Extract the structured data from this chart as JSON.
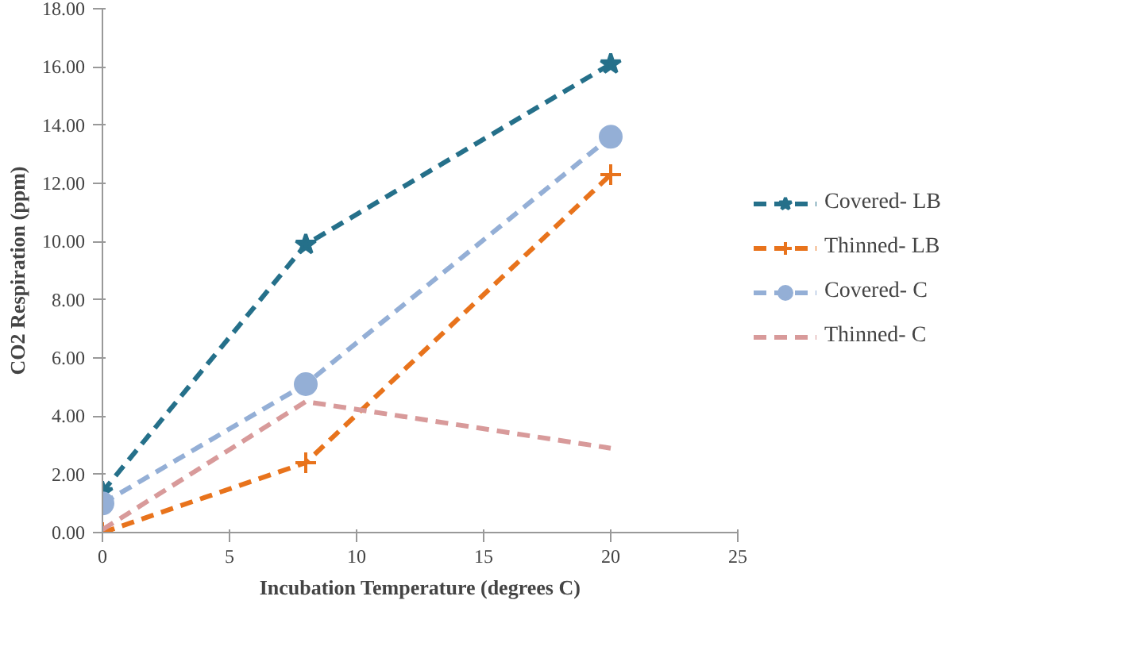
{
  "chart_data": {
    "type": "line",
    "xlabel": "Incubation Temperature (degrees C)",
    "ylabel": "CO2 Respiration (ppm)",
    "x": [
      0,
      8,
      20
    ],
    "series": [
      {
        "name": "Covered- LB",
        "color": "#25708a",
        "marker": "star",
        "values": [
          1.4,
          9.9,
          16.1
        ]
      },
      {
        "name": "Thinned- LB",
        "color": "#e8731c",
        "marker": "cross",
        "values": [
          0.0,
          2.4,
          12.3
        ]
      },
      {
        "name": "Covered- C",
        "color": "#94afd6",
        "marker": "circle",
        "values": [
          1.0,
          5.1,
          13.6
        ]
      },
      {
        "name": "Thinned- C",
        "color": "#d89a9a",
        "marker": "none",
        "values": [
          0.1,
          4.5,
          2.9
        ]
      }
    ],
    "line_style": "dashed",
    "legend": "right",
    "grid": false,
    "xlim": [
      0,
      25
    ],
    "xticks": [
      0,
      5,
      10,
      15,
      20,
      25
    ],
    "ylim": [
      0,
      18
    ],
    "yticks": [
      {
        "value": 0,
        "label": "0.00"
      },
      {
        "value": 2,
        "label": "2.00"
      },
      {
        "value": 4,
        "label": "4.00"
      },
      {
        "value": 6,
        "label": "6.00"
      },
      {
        "value": 8,
        "label": "8.00"
      },
      {
        "value": 10,
        "label": "10.00"
      },
      {
        "value": 12,
        "label": "12.00"
      },
      {
        "value": 14,
        "label": "14.00"
      },
      {
        "value": 16,
        "label": "16.00"
      },
      {
        "value": 18,
        "label": "18.00"
      }
    ]
  }
}
